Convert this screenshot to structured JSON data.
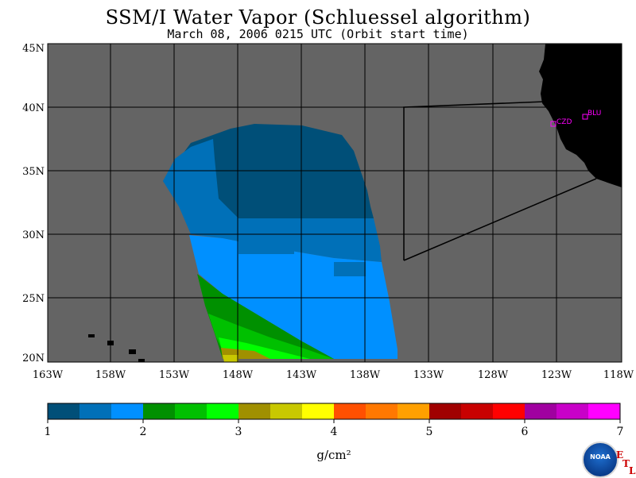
{
  "title": "SSM/I Water Vapor (Schluessel algorithm)",
  "subtitle": "March 08, 2006  0215 UTC  (Orbit start time)",
  "map": {
    "lat_labels": [
      "45N",
      "40N",
      "35N",
      "30N",
      "25N",
      "20N"
    ],
    "lon_labels": [
      "163W",
      "158W",
      "153W",
      "148W",
      "143W",
      "138W",
      "133W",
      "128W",
      "123W",
      "118W"
    ],
    "colors": {
      "background": "#646464",
      "land": "#000000",
      "station": "#ff00ff"
    },
    "stations": [
      {
        "name": "CZD"
      },
      {
        "name": "BLU"
      }
    ]
  },
  "colorbar": {
    "colors": [
      "#004f78",
      "#0070b8",
      "#0090ff",
      "#009000",
      "#00c000",
      "#00ff00",
      "#a09000",
      "#c8c800",
      "#ffff00",
      "#ff5000",
      "#ff7800",
      "#ffa000",
      "#a00000",
      "#c80000",
      "#ff0000",
      "#a000a0",
      "#c800c8",
      "#ff00ff"
    ],
    "tick_labels": [
      "1",
      "2",
      "3",
      "4",
      "5",
      "6",
      "7"
    ],
    "units": "g/cm²"
  },
  "logo": {
    "text": "NOAA",
    "corner_letters": [
      "E",
      "T",
      "L"
    ]
  }
}
